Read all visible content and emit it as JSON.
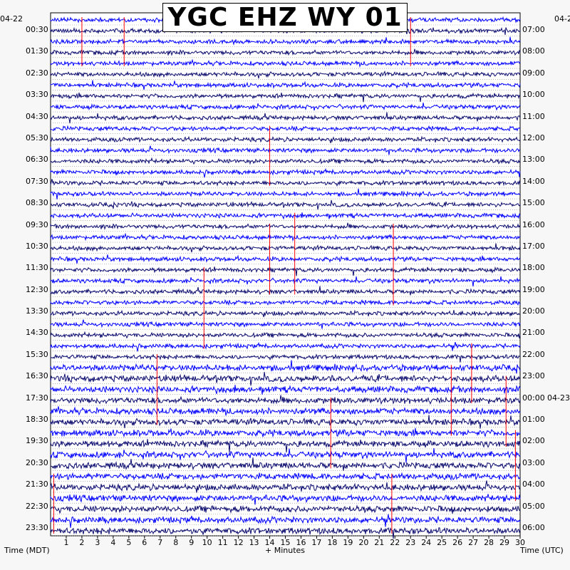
{
  "title": "YGC EHZ WY 01",
  "chart_data": {
    "type": "seismogram-helicorder",
    "title": "YGC EHZ WY 01",
    "xlabel": "+ Minutes",
    "xlim": [
      0,
      30
    ],
    "x_ticks": [
      1,
      2,
      3,
      4,
      5,
      6,
      7,
      8,
      9,
      10,
      11,
      12,
      13,
      14,
      15,
      16,
      17,
      18,
      19,
      20,
      21,
      22,
      23,
      24,
      25,
      26,
      27,
      28,
      29,
      30
    ],
    "left_axis_label": "Time (MDT)",
    "right_axis_label": "Time (UTC)",
    "left_date_label": "04-22",
    "right_date_label": "04-23",
    "left_time_labels": [
      "00:30",
      "01:30",
      "02:30",
      "03:30",
      "04:30",
      "05:30",
      "06:30",
      "07:30",
      "08:30",
      "09:30",
      "10:30",
      "11:30",
      "12:30",
      "13:30",
      "14:30",
      "15:30",
      "16:30",
      "17:30",
      "18:30",
      "19:30",
      "20:30",
      "21:30",
      "22:30",
      "23:30"
    ],
    "right_time_labels": [
      "07:00",
      "08:00",
      "09:00",
      "10:00",
      "11:00",
      "12:00",
      "13:00",
      "14:00",
      "15:00",
      "16:00",
      "17:00",
      "18:00",
      "19:00",
      "20:00",
      "21:00",
      "22:00",
      "23:00",
      "00:00",
      "01:00",
      "02:00",
      "03:00",
      "04:00",
      "05:00",
      "06:00"
    ],
    "right_date_label_row": 17,
    "trace_count": 48,
    "trace_colors": [
      "#0000ff",
      "#0a0a6e",
      "#2424d6"
    ],
    "event_color": "#ff0000",
    "events": [
      {
        "minute": 2.0,
        "row_start": 0,
        "row_end": 4
      },
      {
        "minute": 4.7,
        "row_start": 0,
        "row_end": 4
      },
      {
        "minute": 23.0,
        "row_start": 0,
        "row_end": 4
      },
      {
        "minute": 14.0,
        "row_start": 10,
        "row_end": 15
      },
      {
        "minute": 14.0,
        "row_start": 19,
        "row_end": 25
      },
      {
        "minute": 15.6,
        "row_start": 18,
        "row_end": 25
      },
      {
        "minute": 21.9,
        "row_start": 19,
        "row_end": 26
      },
      {
        "minute": 9.8,
        "row_start": 23,
        "row_end": 30
      },
      {
        "minute": 6.8,
        "row_start": 31,
        "row_end": 37
      },
      {
        "minute": 25.6,
        "row_start": 32,
        "row_end": 38
      },
      {
        "minute": 26.9,
        "row_start": 30,
        "row_end": 35
      },
      {
        "minute": 29.1,
        "row_start": 33,
        "row_end": 39
      },
      {
        "minute": 17.9,
        "row_start": 35,
        "row_end": 41
      },
      {
        "minute": 29.7,
        "row_start": 38,
        "row_end": 44
      },
      {
        "minute": 0.2,
        "row_start": 42,
        "row_end": 47
      },
      {
        "minute": 21.8,
        "row_start": 42,
        "row_end": 47
      }
    ],
    "grid": true
  }
}
